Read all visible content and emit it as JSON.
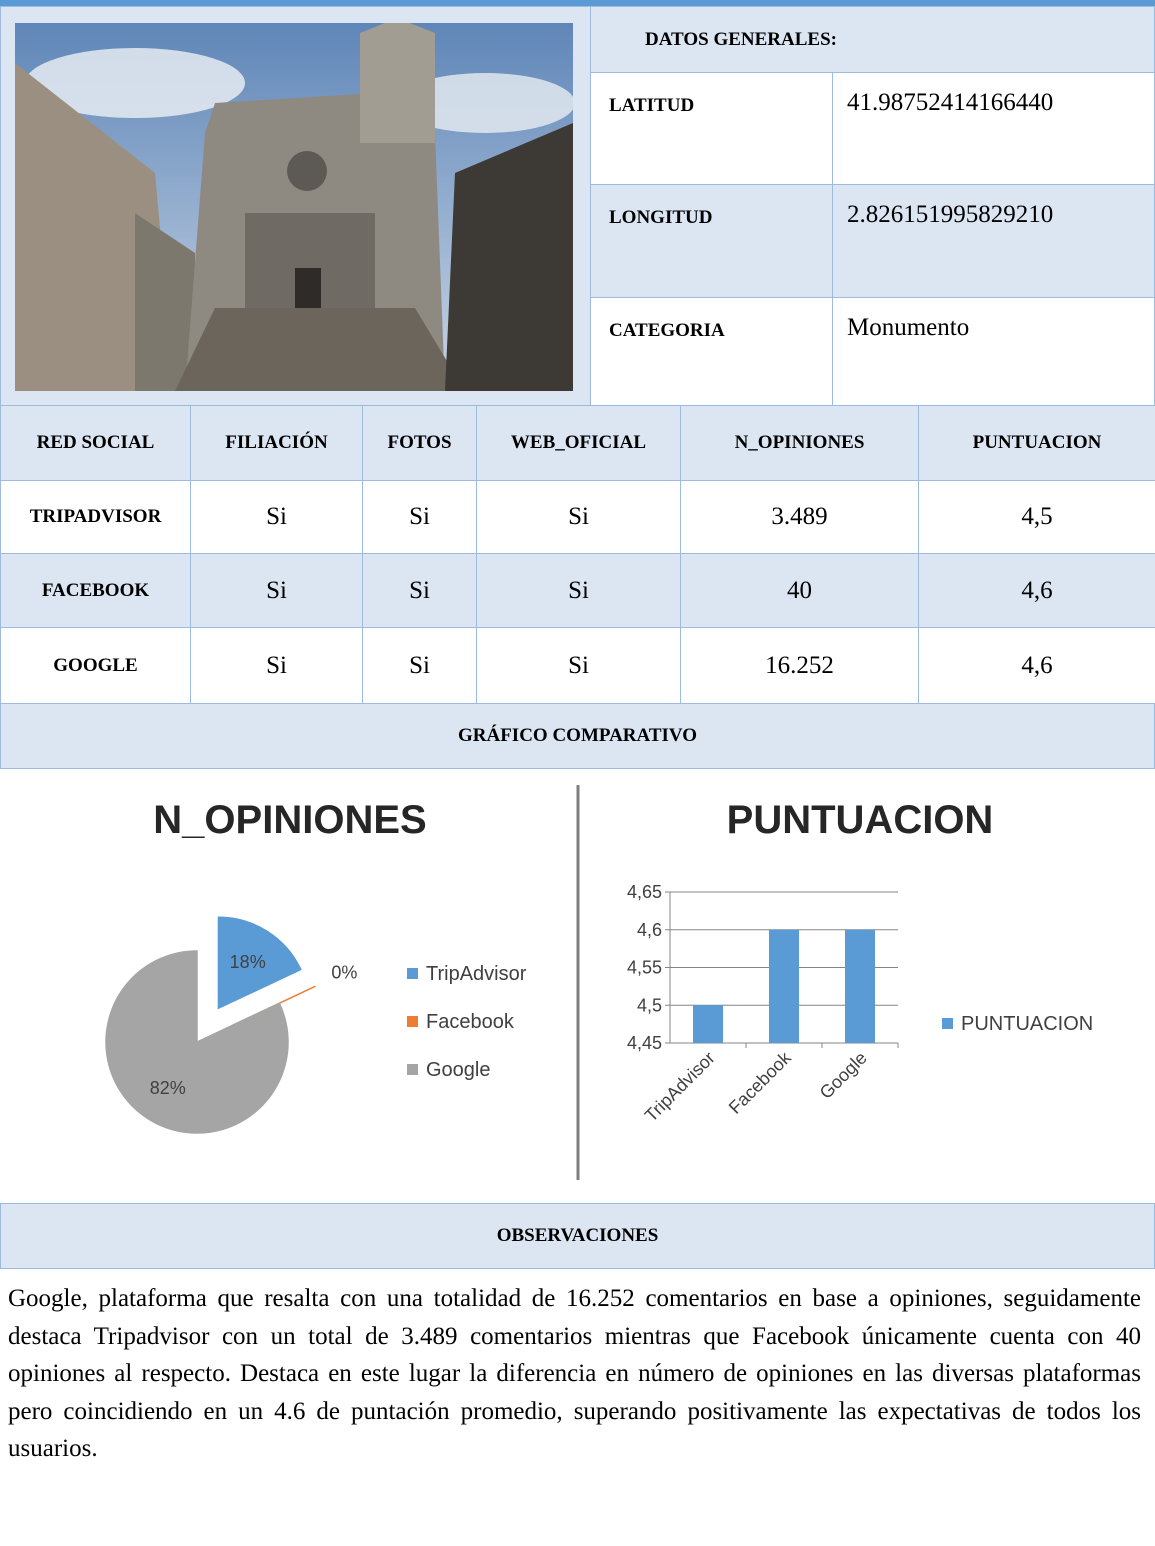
{
  "general": {
    "title": "DATOS GENERALES:",
    "rows": [
      [
        "LATITUD",
        "41.98752414166440"
      ],
      [
        "LONGITUD",
        "2.826151995829210"
      ],
      [
        "CATEGORIA",
        "Monumento"
      ]
    ]
  },
  "social_table": {
    "header": [
      "RED SOCIAL",
      "FILIACIÓN",
      "FOTOS",
      "WEB_OFICIAL",
      "N_OPINIONES",
      "PUNTUACION"
    ],
    "rows": [
      [
        "TRIPADVISOR",
        "Si",
        "Si",
        "Si",
        "3.489",
        "4,5"
      ],
      [
        "FACEBOOK",
        "Si",
        "Si",
        "Si",
        "40",
        "4,6"
      ],
      [
        "GOOGLE",
        "Si",
        "Si",
        "Si",
        "16.252",
        "4,6"
      ]
    ]
  },
  "chart_section_title": "GRÁFICO COMPARATIVO",
  "chart_data": [
    {
      "type": "pie",
      "title": "N_OPINIONES",
      "categories": [
        "TripAdvisor",
        "Facebook",
        "Google"
      ],
      "values": [
        18,
        0,
        82
      ],
      "value_labels": [
        "18%",
        "0%",
        "82%"
      ],
      "colors": [
        "#5b9bd5",
        "#ed7d31",
        "#a5a5a5"
      ]
    },
    {
      "type": "bar",
      "title": "PUNTUACION",
      "categories": [
        "TripAdvisor",
        "Facebook",
        "Google"
      ],
      "series": [
        {
          "name": "PUNTUACION",
          "color": "#5b9bd5",
          "values": [
            4.5,
            4.6,
            4.6
          ]
        }
      ],
      "ylim": [
        4.45,
        4.65
      ],
      "yticks": [
        {
          "value": 4.45,
          "label": "4,45"
        },
        {
          "value": 4.5,
          "label": "4,5"
        },
        {
          "value": 4.55,
          "label": "4,55"
        },
        {
          "value": 4.6,
          "label": "4,6"
        },
        {
          "value": 4.65,
          "label": "4,65"
        }
      ]
    }
  ],
  "observations": {
    "title": "OBSERVACIONES",
    "text": "Google, plataforma que resalta con una totalidad de 16.252 comentarios en base a opiniones, seguidamente destaca Tripadvisor con un total de 3.489 comentarios mientras que Facebook únicamente cuenta con 40 opiniones al respecto. Destaca en este lugar la diferencia en número de opiniones en las diversas plataformas pero coincidiendo en un 4.6 de puntación promedio, superando positivamente las expectativas de todos los usuarios."
  }
}
